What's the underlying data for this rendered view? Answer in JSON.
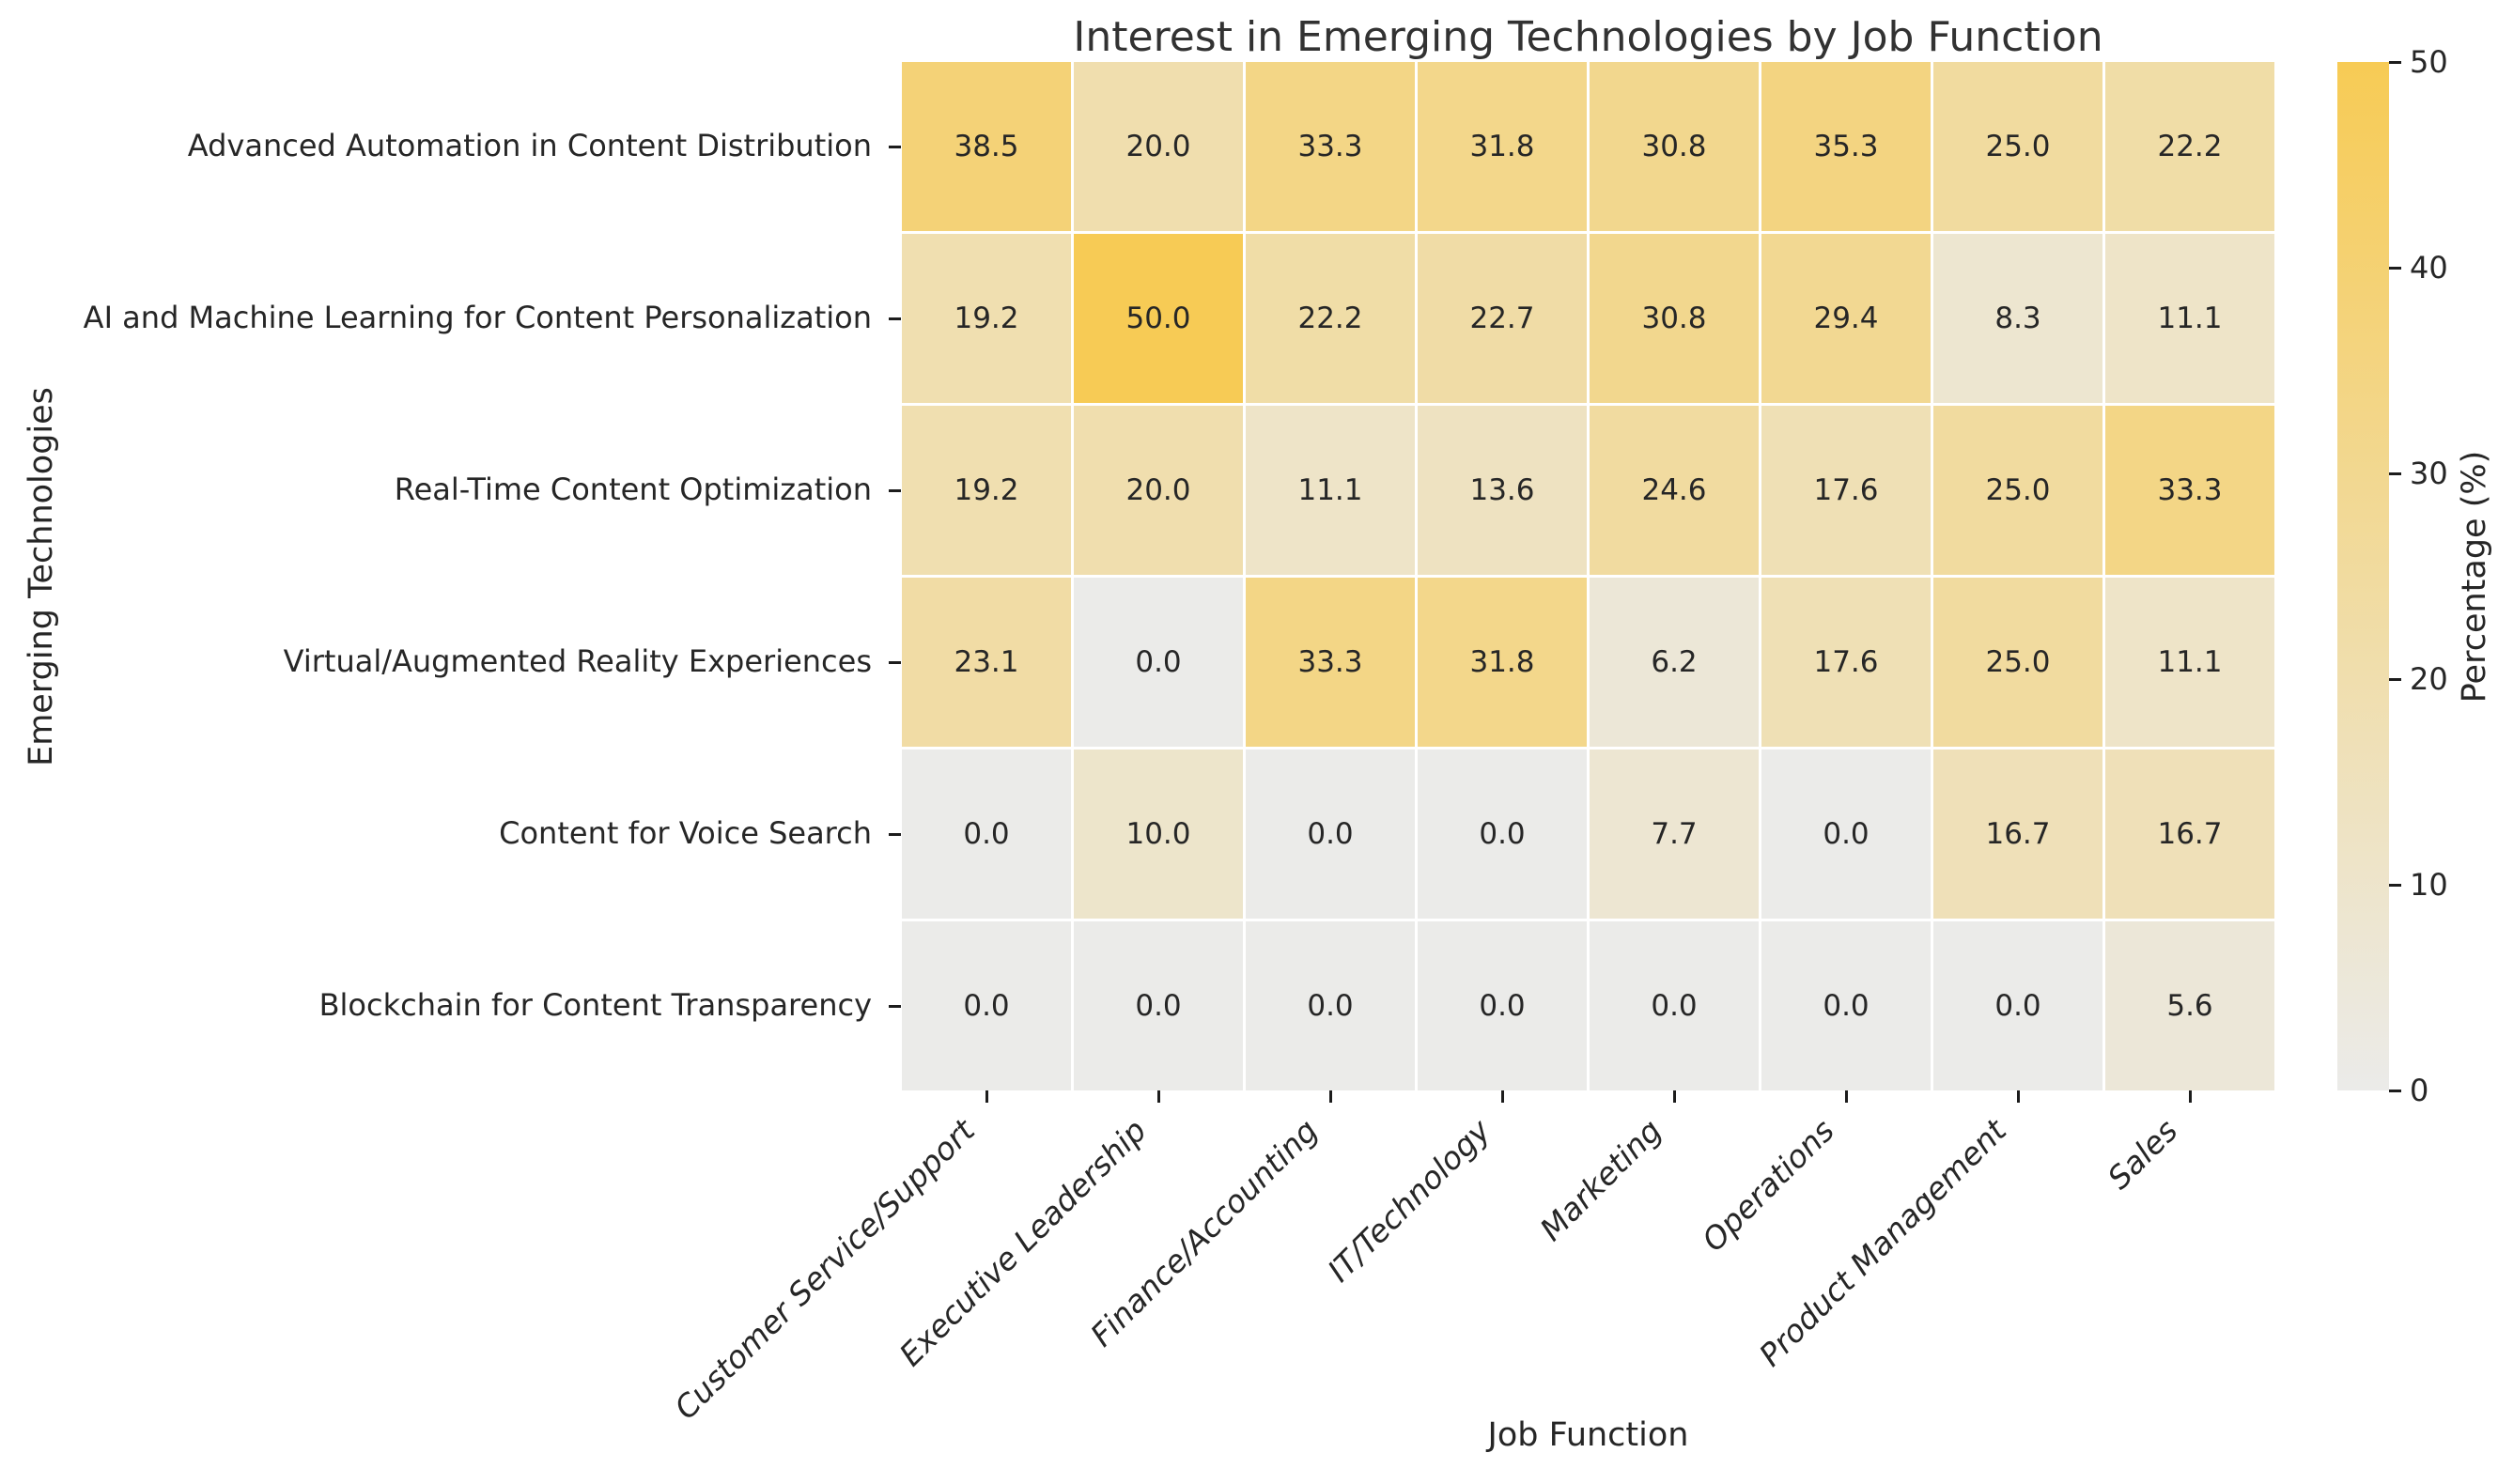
{
  "chart_data": {
    "type": "heatmap",
    "title": "Interest in Emerging Technologies by Job Function",
    "xlabel": "Job Function",
    "ylabel": "Emerging Technologies",
    "rows": [
      "Advanced Automation in Content Distribution",
      "AI and Machine Learning for Content Personalization",
      "Real-Time Content Optimization",
      "Virtual/Augmented Reality Experiences",
      "Content for Voice Search",
      "Blockchain for Content Transparency"
    ],
    "columns": [
      "Customer Service/Support",
      "Executive Leadership",
      "Finance/Accounting",
      "IT/Technology",
      "Marketing",
      "Operations",
      "Product Management",
      "Sales"
    ],
    "values": [
      [
        38.5,
        20.0,
        33.3,
        31.8,
        30.8,
        35.3,
        25.0,
        22.2
      ],
      [
        19.2,
        50.0,
        22.2,
        22.7,
        30.8,
        29.4,
        8.3,
        11.1
      ],
      [
        19.2,
        20.0,
        11.1,
        13.6,
        24.6,
        17.6,
        25.0,
        33.3
      ],
      [
        23.1,
        0.0,
        33.3,
        31.8,
        6.2,
        17.6,
        25.0,
        11.1
      ],
      [
        0.0,
        10.0,
        0.0,
        0.0,
        7.7,
        0.0,
        16.7,
        16.7
      ],
      [
        0.0,
        0.0,
        0.0,
        0.0,
        0.0,
        0.0,
        0.0,
        5.6
      ]
    ],
    "annotations": true,
    "grid_line_color": "#ffffff",
    "colorbar": {
      "label": "Percentage (%)",
      "min": 0,
      "max": 50,
      "ticks": [
        0,
        10,
        20,
        30,
        40,
        50
      ],
      "color_low": "#ebebe9",
      "color_high": "#f7cb55"
    },
    "layout_hints": {
      "legend_position": "right-colorbar",
      "x_tick_rotation_deg": 45,
      "grid": "off"
    }
  }
}
